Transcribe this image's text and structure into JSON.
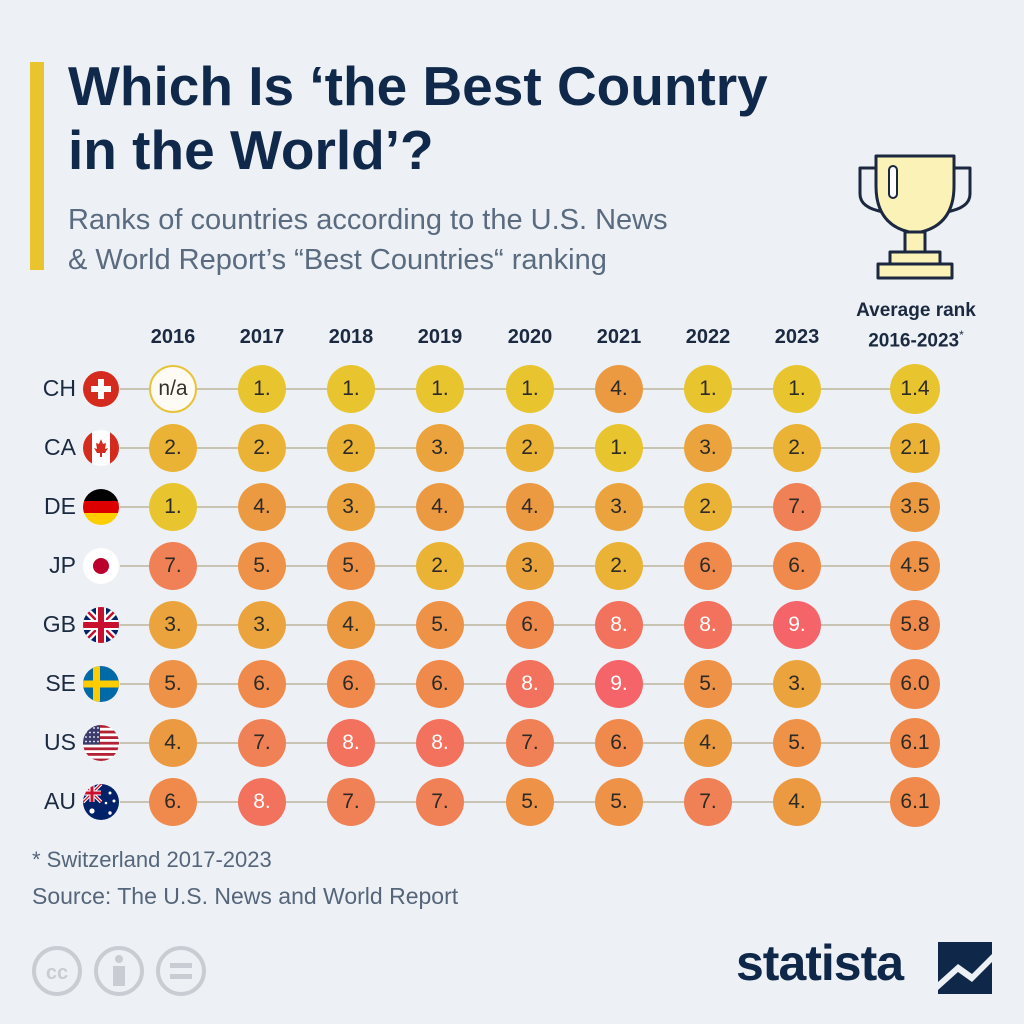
{
  "title_line1": "Which Is ‘the Best Country",
  "title_line2": "in the World’?",
  "subtitle_line1": "Ranks of countries according to the U.S. News",
  "subtitle_line2": "& World Report’s “Best Countries“ ranking",
  "avg_header_line1": "Average rank",
  "avg_header_line2": "2016-2023",
  "avg_header_mark": "*",
  "footnote": "* Switzerland 2017-2023",
  "source": "Source: The U.S. News and World Report",
  "brand": "statista",
  "chart_data": {
    "type": "table",
    "years": [
      "2016",
      "2017",
      "2018",
      "2019",
      "2020",
      "2021",
      "2022",
      "2023"
    ],
    "rows": [
      {
        "code": "CH",
        "flag": "switzerland-flag",
        "ranks": [
          null,
          1,
          1,
          1,
          1,
          4,
          1,
          1
        ],
        "average": "1.4"
      },
      {
        "code": "CA",
        "flag": "canada-flag",
        "ranks": [
          2,
          2,
          2,
          3,
          2,
          1,
          3,
          2
        ],
        "average": "2.1"
      },
      {
        "code": "DE",
        "flag": "germany-flag",
        "ranks": [
          1,
          4,
          3,
          4,
          4,
          3,
          2,
          7
        ],
        "average": "3.5"
      },
      {
        "code": "JP",
        "flag": "japan-flag",
        "ranks": [
          7,
          5,
          5,
          2,
          3,
          2,
          6,
          6
        ],
        "average": "4.5"
      },
      {
        "code": "GB",
        "flag": "uk-flag",
        "ranks": [
          3,
          3,
          4,
          5,
          6,
          8,
          8,
          9
        ],
        "average": "5.8"
      },
      {
        "code": "SE",
        "flag": "sweden-flag",
        "ranks": [
          5,
          6,
          6,
          6,
          8,
          9,
          5,
          3
        ],
        "average": "6.0"
      },
      {
        "code": "US",
        "flag": "usa-flag",
        "ranks": [
          4,
          7,
          8,
          8,
          7,
          6,
          4,
          5
        ],
        "average": "6.1"
      },
      {
        "code": "AU",
        "flag": "australia-flag",
        "ranks": [
          6,
          8,
          7,
          7,
          5,
          5,
          7,
          4
        ],
        "average": "6.1"
      }
    ],
    "na_label": "n/a",
    "rank_colors": {
      "1": "#e8c42e",
      "2": "#eab335",
      "3": "#eba43d",
      "4": "#ec9a42",
      "5": "#ee9248",
      "6": "#ef8a4c",
      "7": "#f08055",
      "8": "#f2725e",
      "9": "#f46468"
    },
    "legend": "none"
  },
  "colors": {
    "title": "#10294a",
    "accent": "#e8c42e",
    "background": "#edf1f5",
    "trophy": "#fbf2b8"
  }
}
